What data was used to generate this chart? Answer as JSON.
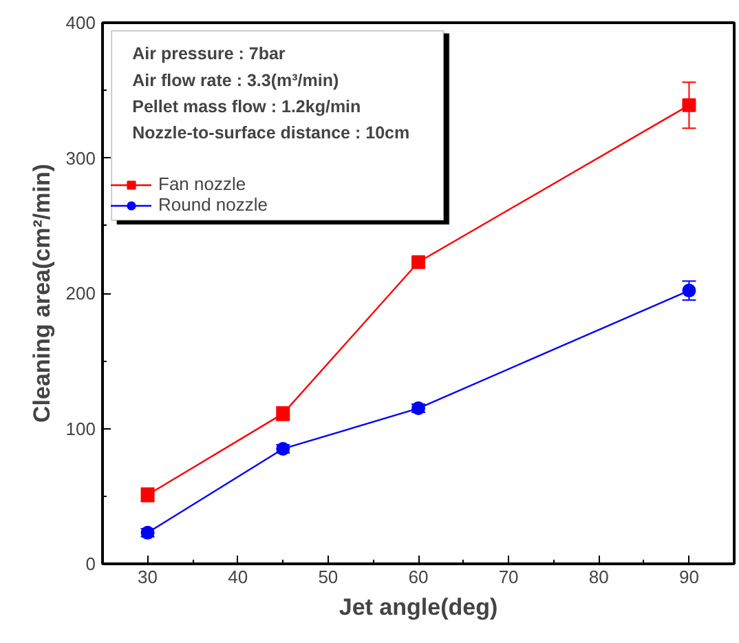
{
  "chart_data": {
    "type": "line",
    "xlabel": "Jet angle(deg)",
    "ylabel": "Cleaning area(cm²/min)",
    "x": [
      30,
      45,
      60,
      90
    ],
    "series": [
      {
        "name": "Fan nozzle",
        "color": "#ff0000",
        "marker": "square",
        "values": [
          51,
          111,
          223,
          339
        ],
        "errors": [
          5,
          5,
          3,
          17
        ]
      },
      {
        "name": "Round nozzle",
        "color": "#0000ff",
        "marker": "circle",
        "values": [
          23,
          85,
          115,
          202
        ],
        "errors": [
          3,
          3,
          3,
          7
        ]
      }
    ],
    "xlim": [
      25,
      95
    ],
    "ylim": [
      0,
      400
    ],
    "xticks": [
      30,
      40,
      50,
      60,
      70,
      80,
      90
    ],
    "yticks": [
      0,
      100,
      200,
      300,
      400
    ],
    "annotations": [
      "Air pressure : 7bar",
      "Air flow rate : 3.3(m³/min)",
      "Pellet mass flow : 1.2kg/min",
      "Nozzle-to-surface distance : 10cm"
    ],
    "legend": "top left",
    "grid": false,
    "line_style": "solid"
  }
}
